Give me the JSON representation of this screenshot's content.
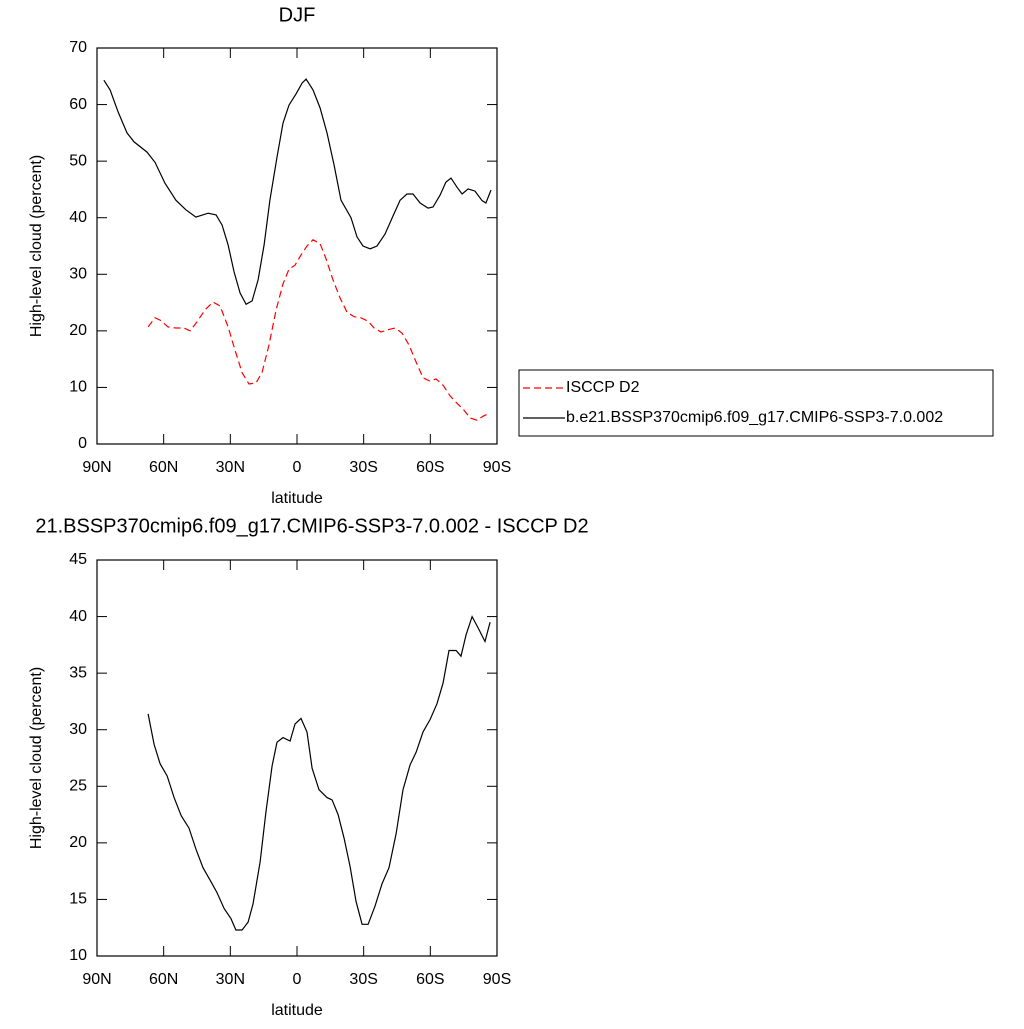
{
  "chart_data": [
    {
      "type": "line",
      "title": "DJF",
      "x_label": "latitude",
      "y_label": "High-level cloud (percent)",
      "xlim": [
        90,
        -90
      ],
      "xticks": [
        {
          "value": 90,
          "label": "90N"
        },
        {
          "value": 60,
          "label": "60N"
        },
        {
          "value": 30,
          "label": "30N"
        },
        0,
        {
          "value": -30,
          "label": "30S"
        },
        {
          "value": -60,
          "label": "60S"
        },
        {
          "value": -90,
          "label": "90S"
        }
      ],
      "ylim": [
        0,
        70
      ],
      "yticks": [
        0,
        10,
        20,
        30,
        40,
        50,
        60,
        70
      ],
      "series": [
        {
          "name": "ISCCP D2",
          "color": "#ff0000",
          "linestyle": "dashed",
          "x": [
            67,
            63.9,
            61.6,
            58,
            54.5,
            50.8,
            48.1,
            45,
            41.4,
            37.8,
            34.6,
            31,
            27.9,
            24.7,
            21.6,
            18.4,
            15.7,
            12.6,
            9.4,
            6.3,
            3.6,
            0.9,
            -1.8,
            -4.5,
            -7.2,
            -10.4,
            -13.1,
            -16.2,
            -19.4,
            -22.5,
            -25.7,
            -28.8,
            -32,
            -34.7,
            -37.8,
            -41,
            -44.1,
            -47.3,
            -50.4,
            -53.6,
            -56.7,
            -59.9,
            -62.6,
            -65.7,
            -68.9,
            -72,
            -74.7,
            -77.9,
            -81,
            -83.7,
            -86.9
          ],
          "values": [
            20.7,
            22.3,
            21.9,
            20.7,
            20.5,
            20.5,
            20,
            21.6,
            23.7,
            25.1,
            24.4,
            20.7,
            16.6,
            12.6,
            10.6,
            10.8,
            12.7,
            17.5,
            23.7,
            28.3,
            30.9,
            31.6,
            33.4,
            35,
            36.1,
            35.4,
            32.7,
            29,
            25.8,
            23.3,
            22.5,
            22.3,
            21.7,
            20.5,
            19.8,
            20.2,
            20.5,
            19.6,
            17.5,
            14.5,
            11.7,
            11.1,
            11.5,
            10.4,
            8.5,
            7.2,
            6.2,
            4.6,
            4.2,
            4.9,
            5.5
          ]
        },
        {
          "name": "b.e21.BSSP370cmip6.f09_g17.CMIP6-SSP3-7.0.002",
          "color": "#000000",
          "linestyle": "solid",
          "x": [
            86.9,
            84.1,
            80.5,
            76.5,
            73.3,
            67.5,
            63.9,
            59.4,
            54.5,
            50,
            45.5,
            40,
            36.4,
            33.7,
            31,
            28.3,
            25.6,
            22.9,
            20.2,
            17.5,
            14.8,
            12.2,
            9,
            6.3,
            3.6,
            0.4,
            -2.3,
            -4.1,
            -7.2,
            -10.4,
            -13.5,
            -16.7,
            -19.8,
            -24.3,
            -27,
            -29.7,
            -32.9,
            -36,
            -39.6,
            -43.2,
            -46.4,
            -49.5,
            -52.2,
            -55.4,
            -59,
            -61.2,
            -64.4,
            -67,
            -69.3,
            -72,
            -74.3,
            -77,
            -80.1,
            -83.3,
            -85,
            -87.3
          ],
          "values": [
            64.3,
            62.6,
            58.7,
            55,
            53.4,
            51.6,
            49.8,
            46.1,
            43.1,
            41.4,
            40.1,
            40.8,
            40.5,
            38.7,
            35.2,
            30.4,
            26.7,
            24.7,
            25.3,
            29,
            35.2,
            43.1,
            50.7,
            56.7,
            59.9,
            61.9,
            63.8,
            64.5,
            62.6,
            59.4,
            55,
            49.3,
            43.1,
            40,
            36.6,
            35,
            34.5,
            35,
            37.1,
            40.3,
            43.1,
            44.2,
            44.2,
            42.6,
            41.7,
            41.9,
            44,
            46.3,
            47,
            45.4,
            44.2,
            45.1,
            44.7,
            43,
            42.6,
            44.9
          ]
        }
      ]
    },
    {
      "type": "line",
      "title": "21.BSSP370cmip6.f09_g17.CMIP6-SSP3-7.0.002 - ISCCP D2",
      "x_label": "latitude",
      "y_label": "High-level cloud (percent)",
      "xlim": [
        90,
        -90
      ],
      "xticks": [
        {
          "value": 90,
          "label": "90N"
        },
        {
          "value": 60,
          "label": "60N"
        },
        {
          "value": 30,
          "label": "30N"
        },
        0,
        {
          "value": -30,
          "label": "30S"
        },
        {
          "value": -60,
          "label": "60S"
        },
        {
          "value": -90,
          "label": "90S"
        }
      ],
      "ylim": [
        10,
        45
      ],
      "yticks": [
        10,
        15,
        20,
        25,
        30,
        35,
        40,
        45
      ],
      "series": [
        {
          "color": "#000000",
          "linestyle": "solid",
          "x": [
            67,
            64.3,
            61.6,
            58.4,
            55.3,
            52.1,
            48.6,
            45.4,
            42.3,
            39.1,
            36,
            32.8,
            29.7,
            27.5,
            24.7,
            22,
            19.8,
            16.6,
            14,
            11.2,
            9,
            6.3,
            3.1,
            0.9,
            -1.8,
            -4.5,
            -6.8,
            -9.9,
            -13.5,
            -15.8,
            -18.5,
            -21.2,
            -23.9,
            -26.6,
            -29.3,
            -32,
            -35.1,
            -38.3,
            -41.4,
            -44.6,
            -47.7,
            -50.9,
            -53.6,
            -56.7,
            -59.9,
            -63,
            -65.7,
            -68.4,
            -71.6,
            -73.8,
            -76.1,
            -78.8,
            -81.5,
            -84.6,
            -86.9
          ],
          "values": [
            31.4,
            28.7,
            27,
            25.9,
            24,
            22.4,
            21.3,
            19.4,
            17.8,
            16.7,
            15.6,
            14.2,
            13.3,
            12.3,
            12.3,
            13,
            14.6,
            18.3,
            22.7,
            26.8,
            28.9,
            29.3,
            29,
            30.5,
            31,
            29.8,
            26.6,
            24.7,
            24,
            23.8,
            22.5,
            20.4,
            17.9,
            14.8,
            12.8,
            12.8,
            14.4,
            16.4,
            17.8,
            20.8,
            24.7,
            26.9,
            28,
            29.8,
            30.9,
            32.3,
            34.1,
            37,
            37,
            36.5,
            38.4,
            40,
            39,
            37.8,
            39.5
          ]
        }
      ]
    }
  ]
}
